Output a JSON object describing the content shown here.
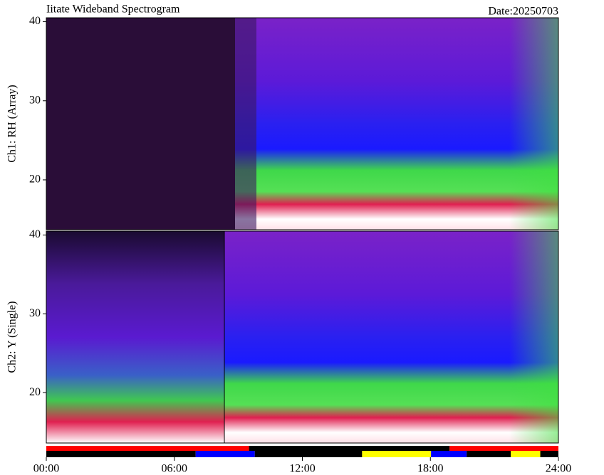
{
  "chart_data": {
    "type": "spectrogram",
    "title": "Iitate Wideband Spectrogram",
    "subtitle": "Date:20250703",
    "xlim": [
      0,
      24
    ],
    "xticks": [
      {
        "value": 0,
        "label": "00:00"
      },
      {
        "value": 6,
        "label": "06:00"
      },
      {
        "value": 12,
        "label": "12:00"
      },
      {
        "value": 18,
        "label": "18:00"
      },
      {
        "value": 24,
        "label": "24:00"
      }
    ],
    "panels": [
      {
        "ylabel": "Ch1: RH (Array)",
        "ylim": [
          13.7,
          40.5
        ],
        "yticks": [
          20,
          30,
          40
        ]
      },
      {
        "ylabel": "Ch2: Y (Single)",
        "ylim": [
          13.6,
          40.5
        ],
        "yticks": [
          20,
          30,
          40
        ]
      }
    ],
    "status_rows": [
      [
        {
          "start": 0,
          "end": 9.5,
          "color": "#ff0000"
        },
        {
          "start": 9.5,
          "end": 18.9,
          "color": "#000000"
        },
        {
          "start": 18.9,
          "end": 24,
          "color": "#ff0000"
        }
      ],
      [
        {
          "start": 0,
          "end": 7,
          "color": "#000000"
        },
        {
          "start": 7,
          "end": 9.77,
          "color": "#0000ff"
        },
        {
          "start": 9.77,
          "end": 14.8,
          "color": "#000000"
        },
        {
          "start": 14.8,
          "end": 18.03,
          "color": "#ffff00"
        },
        {
          "start": 18.03,
          "end": 19.7,
          "color": "#0000ff"
        },
        {
          "start": 19.7,
          "end": 21.77,
          "color": "#000000"
        },
        {
          "start": 21.77,
          "end": 23.15,
          "color": "#ffff00"
        },
        {
          "start": 23.15,
          "end": 24,
          "color": "#000000"
        }
      ]
    ]
  }
}
